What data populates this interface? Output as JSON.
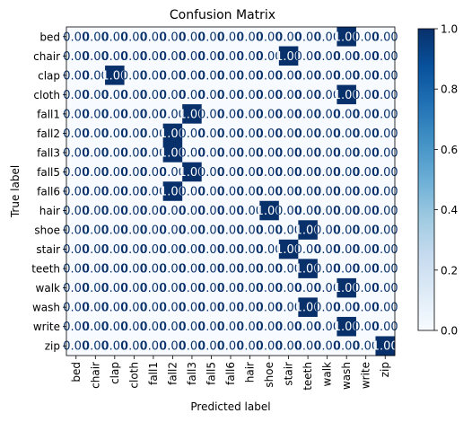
{
  "chart_data": {
    "type": "heatmap",
    "title": "Confusion Matrix",
    "xlabel": "Predicted label",
    "ylabel": "True label",
    "labels": [
      "bed",
      "chair",
      "clap",
      "cloth",
      "fall1",
      "fall2",
      "fall3",
      "fall5",
      "fall6",
      "hair",
      "shoe",
      "stair",
      "teeth",
      "walk",
      "wash",
      "write",
      "zip"
    ],
    "cell_text_zero": "0.00",
    "cell_text_one": "1.00",
    "ones": [
      {
        "row": 0,
        "col": 14
      },
      {
        "row": 1,
        "col": 11
      },
      {
        "row": 2,
        "col": 2
      },
      {
        "row": 3,
        "col": 14
      },
      {
        "row": 4,
        "col": 6
      },
      {
        "row": 5,
        "col": 5
      },
      {
        "row": 6,
        "col": 5
      },
      {
        "row": 7,
        "col": 6
      },
      {
        "row": 8,
        "col": 5
      },
      {
        "row": 9,
        "col": 10
      },
      {
        "row": 10,
        "col": 12
      },
      {
        "row": 11,
        "col": 11
      },
      {
        "row": 12,
        "col": 12
      },
      {
        "row": 13,
        "col": 14
      },
      {
        "row": 14,
        "col": 12
      },
      {
        "row": 15,
        "col": 14
      },
      {
        "row": 16,
        "col": 16
      }
    ],
    "colorbar": {
      "ticks": [
        "0.0",
        "0.2",
        "0.4",
        "0.6",
        "0.8",
        "1.0"
      ],
      "range": [
        0,
        1
      ],
      "colormap": "Blues",
      "low_color": "#f7fbff",
      "high_color": "#08306b"
    }
  }
}
